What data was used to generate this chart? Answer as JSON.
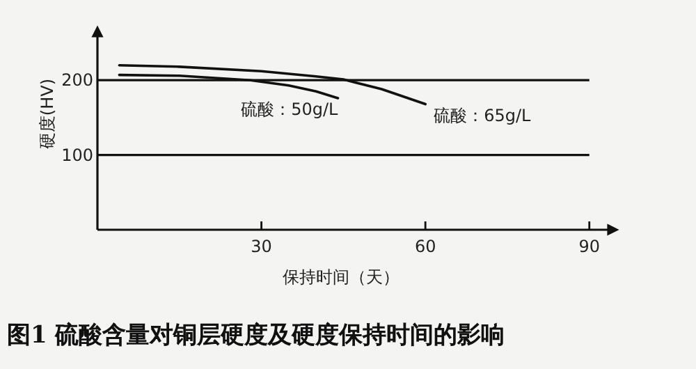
{
  "chart_data": {
    "type": "line",
    "title": "图1  硫酸含量对铜层硬度及硬度保持时间的影响",
    "xlabel": "保持时间（天）",
    "ylabel": "硬度(HV)",
    "xlim": [
      0,
      95
    ],
    "ylim": [
      0,
      270
    ],
    "xticks": [
      30,
      60,
      90
    ],
    "yticks": [
      100,
      200
    ],
    "grid": false,
    "marker": "none",
    "line_style": "solid",
    "series": [
      {
        "name": "硫酸：65g/L",
        "color": "#111111",
        "x": [
          4,
          15,
          30,
          40,
          45,
          52,
          60
        ],
        "values": [
          220,
          218,
          212,
          205,
          201,
          188,
          168
        ]
      },
      {
        "name": "硫酸：50g/L",
        "color": "#111111",
        "x": [
          4,
          15,
          28,
          35,
          40,
          44
        ],
        "values": [
          207,
          206,
          200,
          193,
          185,
          176
        ]
      }
    ],
    "ref_lines": [
      {
        "axis": "y",
        "value": 200,
        "color": "#111111"
      },
      {
        "axis": "y",
        "value": 100,
        "color": "#111111"
      }
    ]
  }
}
